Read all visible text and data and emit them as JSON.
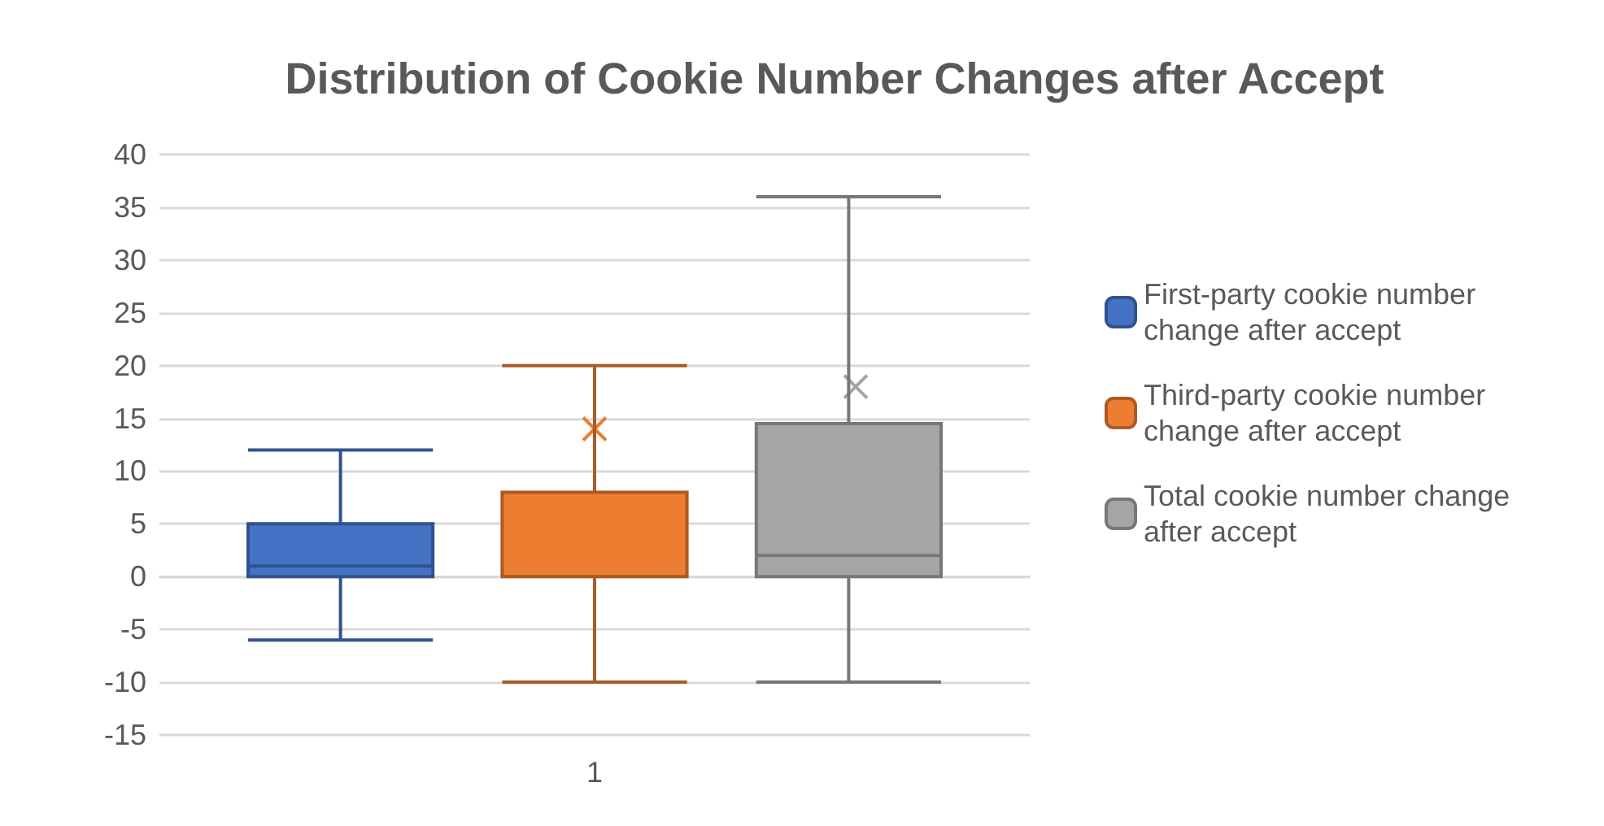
{
  "chart_data": {
    "type": "box",
    "title": "Distribution of Cookie Number Changes after Accept",
    "categories": [
      "1"
    ],
    "series": [
      {
        "name": "First-party cookie number change after accept",
        "color": "#4472c4",
        "boxes": [
          {
            "low": -6,
            "q1": 0,
            "median": 1,
            "q3": 5,
            "high": 12,
            "mean": 4
          }
        ]
      },
      {
        "name": "Third-party cookie number change after accept",
        "color": "#ed7d31",
        "boxes": [
          {
            "low": -10,
            "q1": 0,
            "median": 0,
            "q3": 8,
            "high": 20,
            "mean": 14
          }
        ]
      },
      {
        "name": "Total cookie number change after accept",
        "color": "#a5a5a5",
        "boxes": [
          {
            "low": -10,
            "q1": 0,
            "median": 2,
            "q3": 14.5,
            "high": 36,
            "mean": 18
          }
        ]
      }
    ],
    "ylim": [
      -15,
      40
    ],
    "yticks": [
      -15,
      -10,
      -5,
      0,
      5,
      10,
      15,
      20,
      25,
      30,
      35,
      40
    ],
    "grid": "y",
    "legend": "right"
  }
}
